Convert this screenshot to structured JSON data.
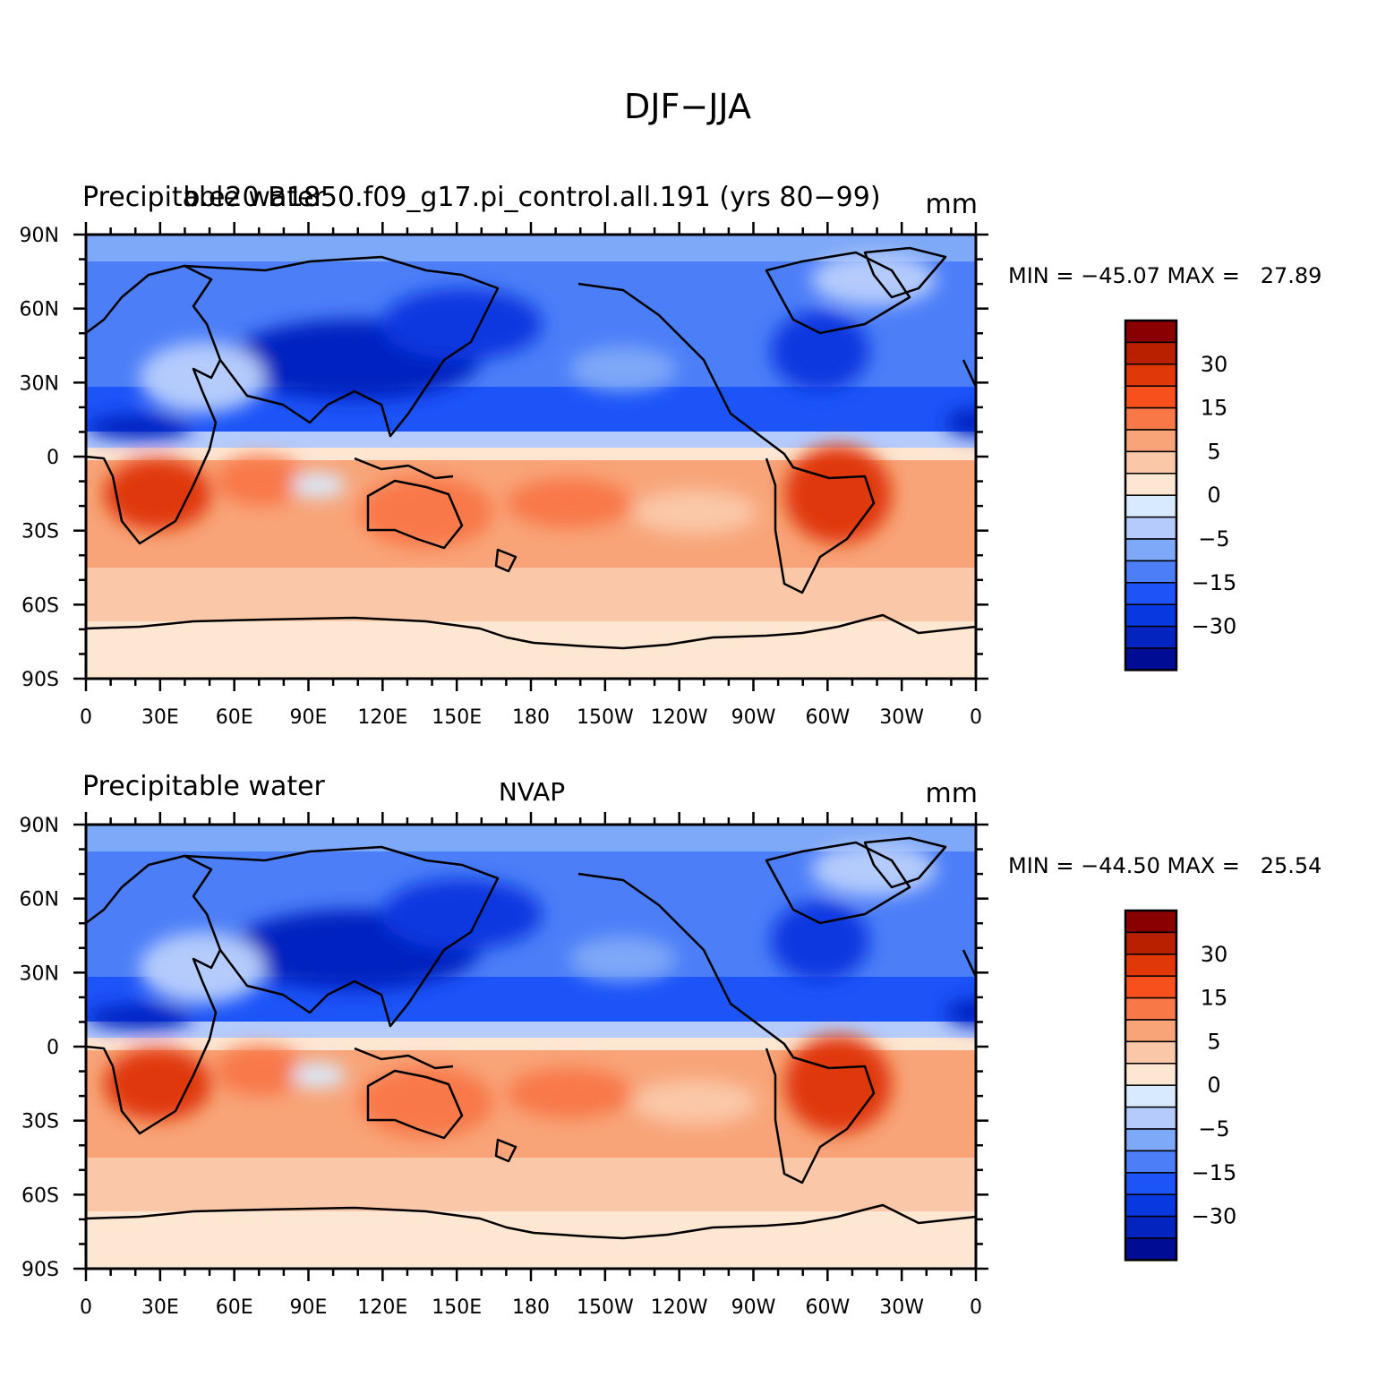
{
  "figure_title": "DJF−JJA",
  "panels": [
    {
      "id": "top",
      "left_title": "Precipitable water",
      "center_title": "b.e20.B1850.f09_g17.pi_control.all.191 (yrs 80−99)",
      "units": "mm",
      "stats": "MIN = −45.07 MAX =   27.89"
    },
    {
      "id": "bottom",
      "left_title": "Precipitable water",
      "center_title": "NVAP",
      "units": "mm",
      "stats": "MIN = −44.50 MAX =   25.54"
    }
  ],
  "lat_labels": [
    "90N",
    "60N",
    "30N",
    "0",
    "30S",
    "60S",
    "90S"
  ],
  "lon_labels": [
    "0",
    "30E",
    "60E",
    "90E",
    "120E",
    "150E",
    "180",
    "150W",
    "120W",
    "90W",
    "60W",
    "30W",
    "0"
  ],
  "colorbar": {
    "colors": [
      "#8a0000",
      "#b82000",
      "#e03808",
      "#f8501c",
      "#f87848",
      "#f8a478",
      "#fac8a8",
      "#fde6d2",
      "#d8eaff",
      "#b4cbfc",
      "#7ea8f8",
      "#4c7ef8",
      "#1c54f8",
      "#0838e0",
      "#0424c0",
      "#000c94"
    ],
    "labels": [
      "30",
      "15",
      "5",
      "0",
      "−5",
      "−15",
      "−30"
    ]
  },
  "chart_data": {
    "type": "heatmap",
    "title": "DJF−JJA",
    "variable": "Precipitable water",
    "units": "mm",
    "x_ticks": [
      "0",
      "30E",
      "60E",
      "90E",
      "120E",
      "150E",
      "180",
      "150W",
      "120W",
      "90W",
      "60W",
      "30W",
      "0"
    ],
    "y_ticks": [
      "90N",
      "60N",
      "30N",
      "0",
      "30S",
      "60S",
      "90S"
    ],
    "contour_labels": [
      "30",
      "15",
      "5",
      "0",
      "−5",
      "−15",
      "−30"
    ],
    "series": [
      {
        "name": "b.e20.B1850.f09_g17.pi_control.all.191 (yrs 80−99)",
        "min": -45.07,
        "max": 27.89
      },
      {
        "name": "NVAP",
        "min": -44.5,
        "max": 25.54
      }
    ]
  }
}
